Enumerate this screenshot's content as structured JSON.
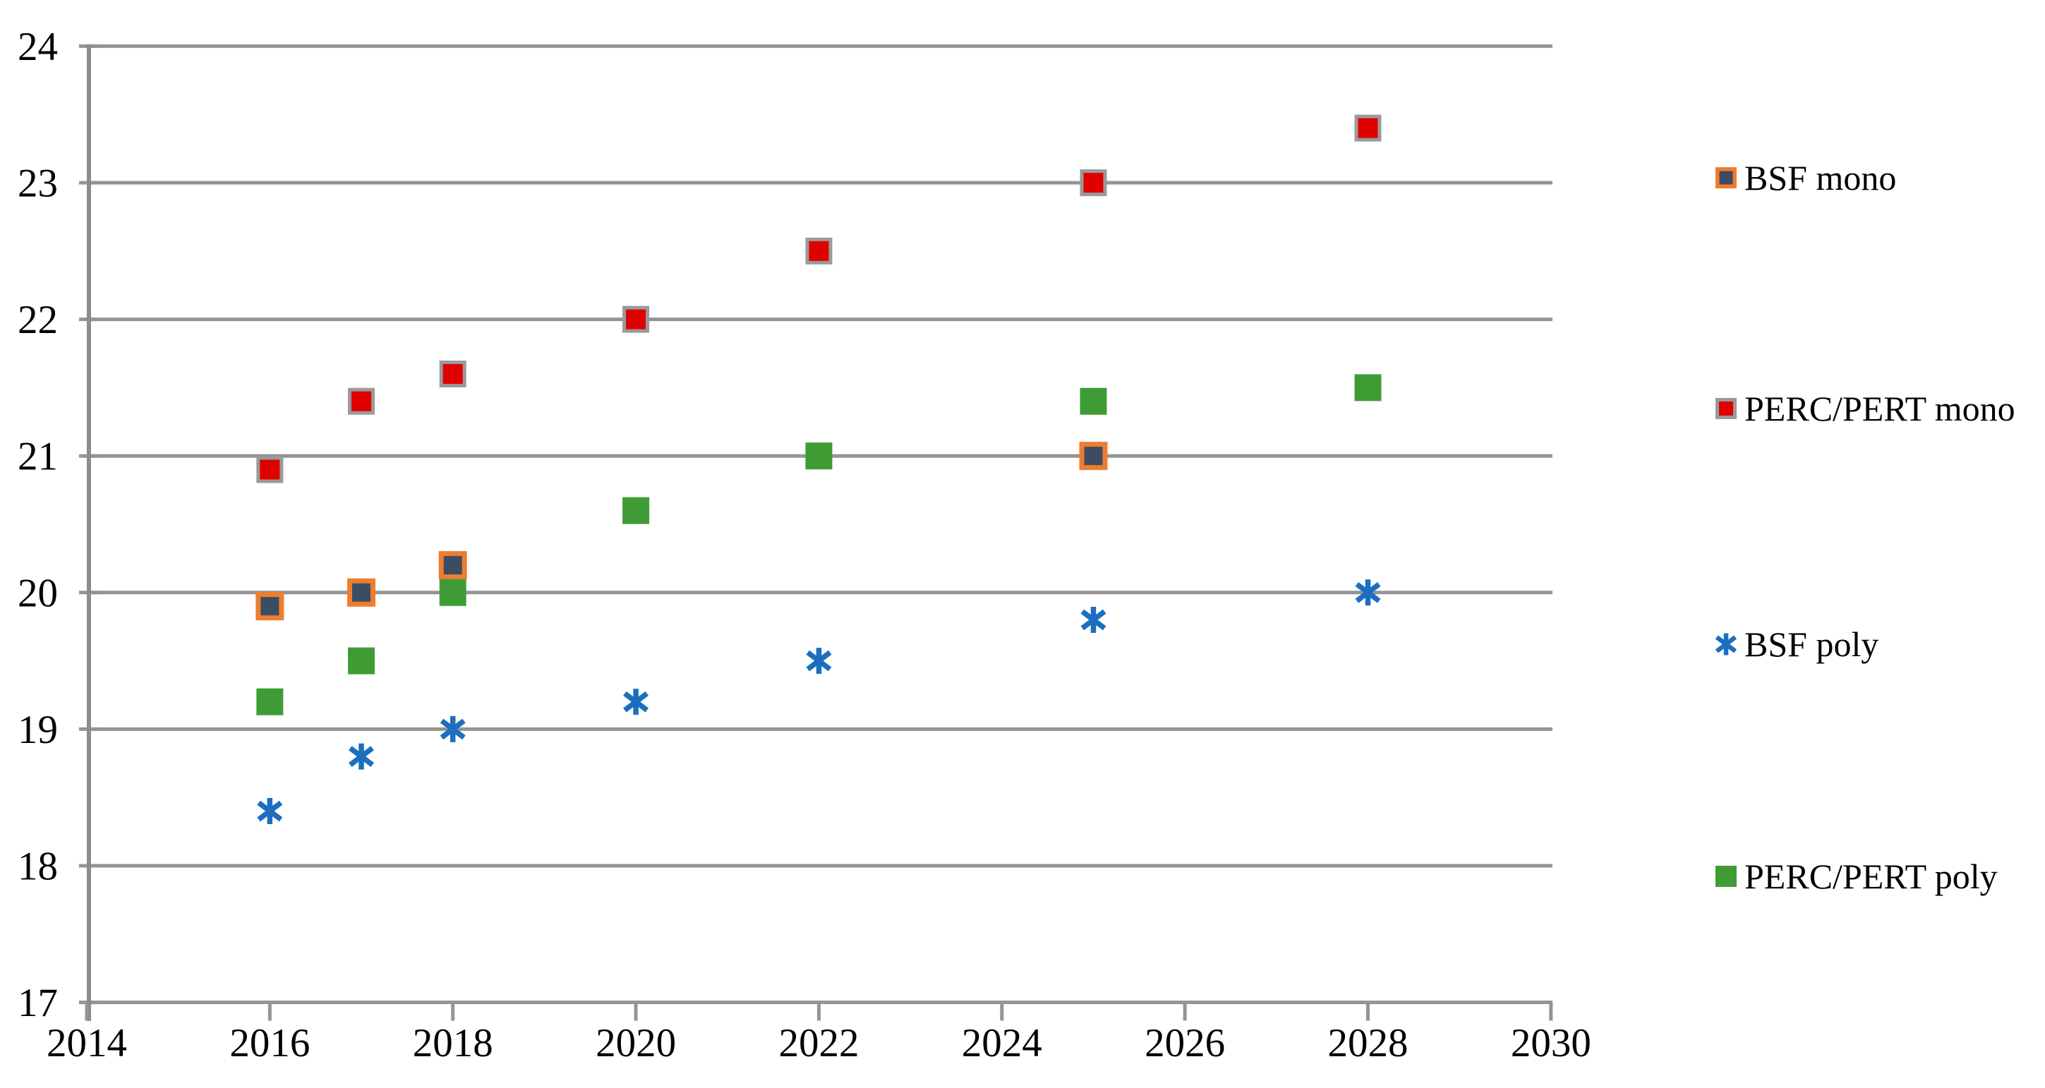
{
  "chart_data": {
    "type": "scatter",
    "title": "",
    "xlabel": "",
    "ylabel": "",
    "xlim": [
      2014,
      2030
    ],
    "ylim": [
      17,
      24
    ],
    "x_ticks": [
      "2014",
      "2016",
      "2018",
      "2020",
      "2022",
      "2024",
      "2026",
      "2028",
      "2030"
    ],
    "y_ticks": [
      "17",
      "18",
      "19",
      "20",
      "21",
      "22",
      "23",
      "24"
    ],
    "grid": "horizontal",
    "grid_color": "#949494",
    "axis_color": "#8c8c8c",
    "label_color": "#000000",
    "legend_position": "right",
    "series": [
      {
        "name": "BSF mono",
        "marker": "square-bordered",
        "fill": "#3c4d63",
        "border": "#ee7d2e",
        "points": [
          {
            "x": 2016,
            "y": 19.9
          },
          {
            "x": 2017,
            "y": 20.0
          },
          {
            "x": 2018,
            "y": 20.2
          },
          {
            "x": 2025,
            "y": 21.0
          }
        ]
      },
      {
        "name": "PERC/PERT mono",
        "marker": "square-bordered",
        "fill": "#df0000",
        "border": "#9a9a9a",
        "points": [
          {
            "x": 2016,
            "y": 20.9
          },
          {
            "x": 2017,
            "y": 21.4
          },
          {
            "x": 2018,
            "y": 21.6
          },
          {
            "x": 2020,
            "y": 22.0
          },
          {
            "x": 2022,
            "y": 22.5
          },
          {
            "x": 2025,
            "y": 23.0
          },
          {
            "x": 2028,
            "y": 23.4
          }
        ]
      },
      {
        "name": "BSF poly",
        "marker": "asterisk",
        "fill": "#1c6fbf",
        "points": [
          {
            "x": 2016,
            "y": 18.4
          },
          {
            "x": 2017,
            "y": 18.8
          },
          {
            "x": 2018,
            "y": 19.0
          },
          {
            "x": 2020,
            "y": 19.2
          },
          {
            "x": 2022,
            "y": 19.5
          },
          {
            "x": 2025,
            "y": 19.8
          },
          {
            "x": 2028,
            "y": 20.0
          }
        ]
      },
      {
        "name": "PERC/PERT poly",
        "marker": "square",
        "fill": "#3f9c35",
        "points": [
          {
            "x": 2016,
            "y": 19.2
          },
          {
            "x": 2017,
            "y": 19.5
          },
          {
            "x": 2018,
            "y": 20.0
          },
          {
            "x": 2020,
            "y": 20.6
          },
          {
            "x": 2022,
            "y": 21.0
          },
          {
            "x": 2025,
            "y": 21.4
          },
          {
            "x": 2028,
            "y": 21.5
          }
        ]
      }
    ]
  }
}
